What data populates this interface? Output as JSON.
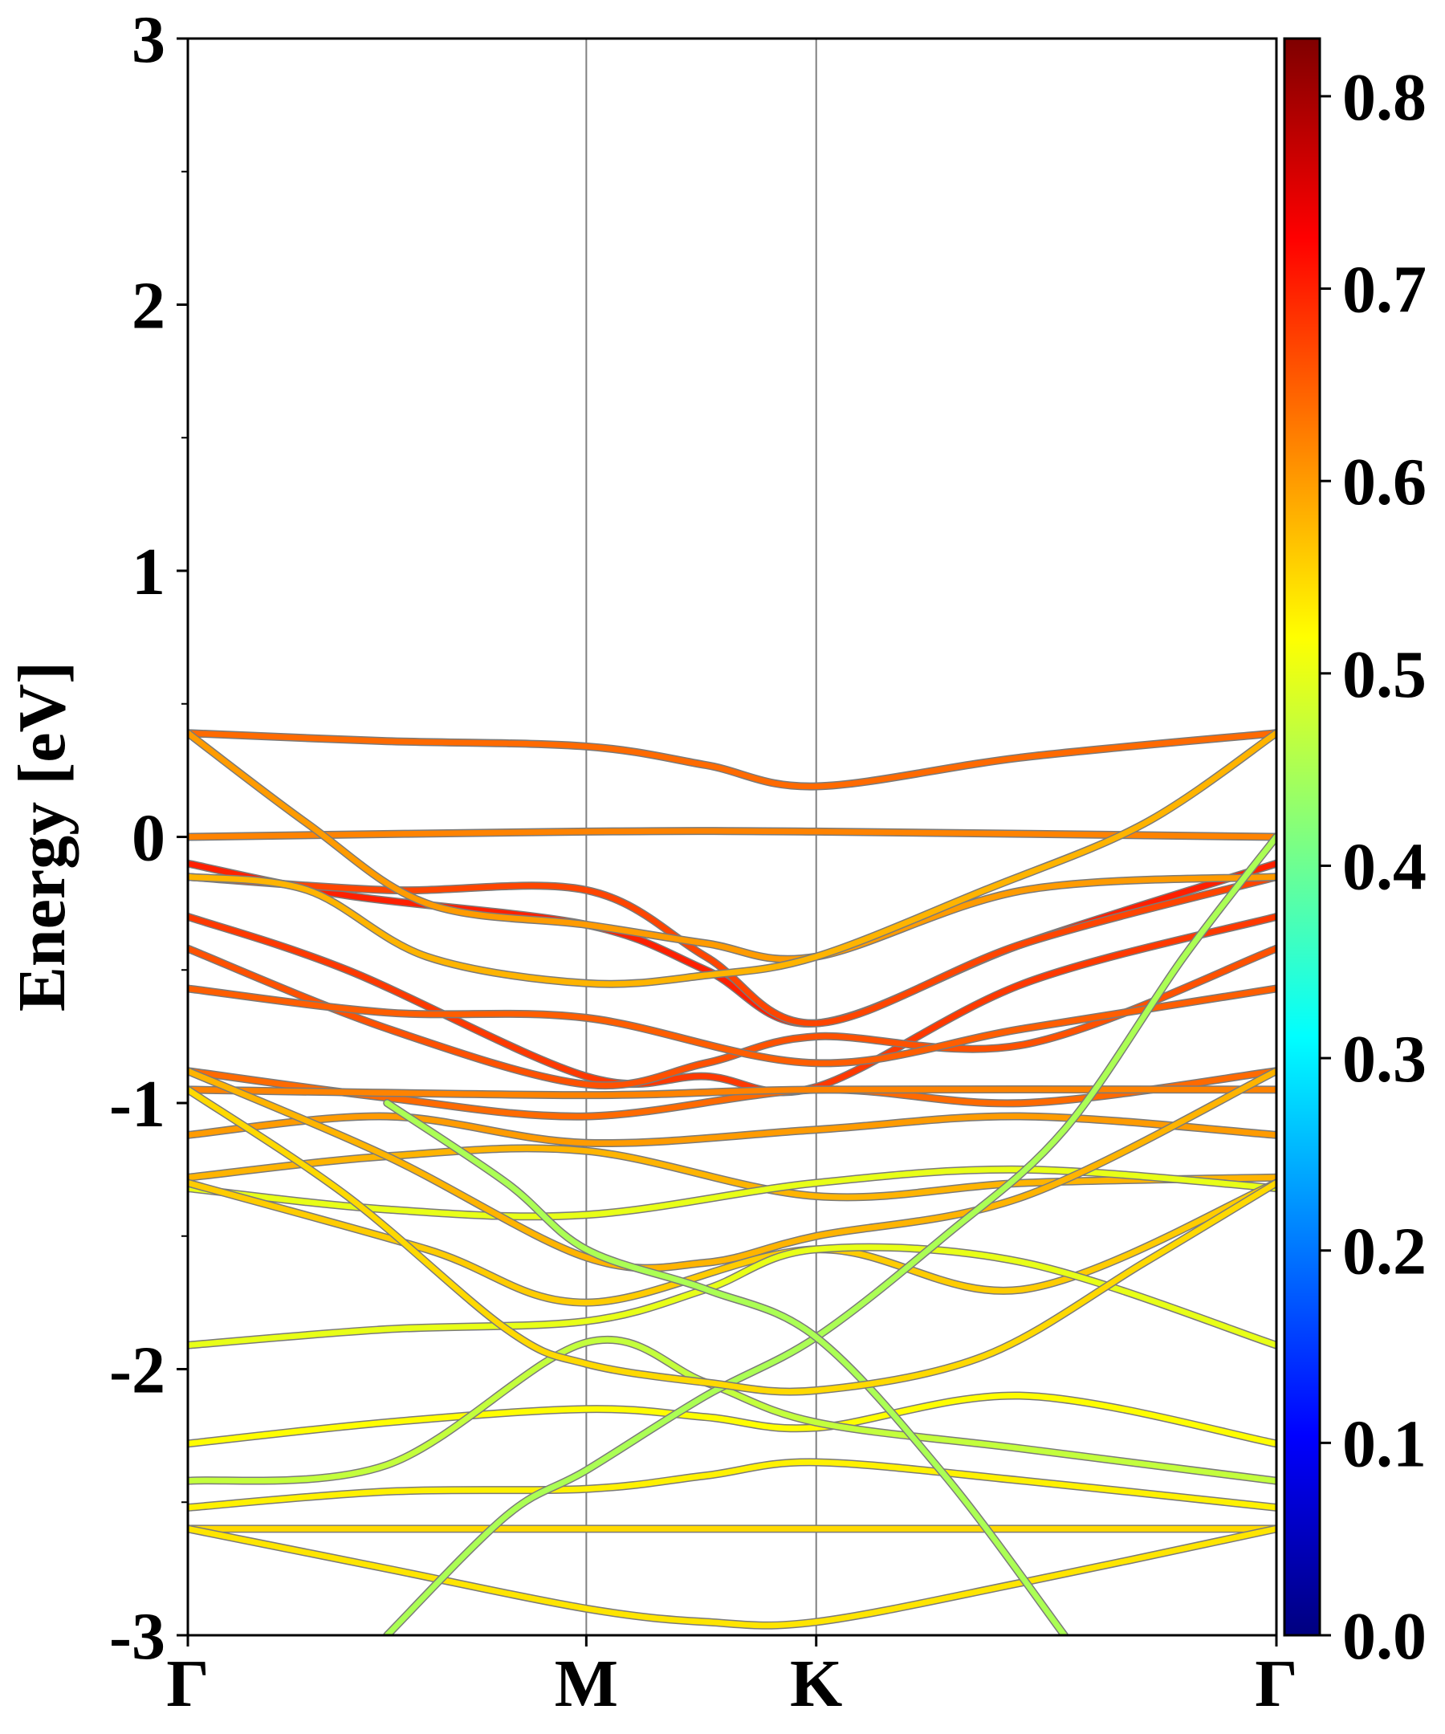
{
  "chart_data": {
    "type": "line",
    "title": "",
    "xlabel": "",
    "ylabel": "Energy [eV]",
    "ylim": [
      -3,
      3
    ],
    "y_ticks": [
      -3,
      -2,
      -1,
      0,
      1,
      2,
      3
    ],
    "y_tick_labels": [
      "-3",
      "-2",
      "-1",
      "0",
      "1",
      "2",
      "3"
    ],
    "k_points": [
      {
        "label": "Γ",
        "x": 0.0
      },
      {
        "label": "M",
        "x": 1.0
      },
      {
        "label": "K",
        "x": 1.577
      },
      {
        "label": "Γ",
        "x": 2.732
      }
    ],
    "colorbar": {
      "colormap": "jet",
      "range": [
        0.0,
        0.83
      ],
      "ticks": [
        0.0,
        0.1,
        0.2,
        0.3,
        0.4,
        0.5,
        0.6,
        0.7,
        0.8
      ],
      "tick_labels": [
        "0.0",
        "0.1",
        "0.2",
        "0.3",
        "0.4",
        "0.5",
        "0.6",
        "0.7",
        "0.8"
      ]
    },
    "series": [
      {
        "x": [
          0,
          0.5,
          1.0,
          1.3,
          1.577,
          2.1,
          2.732
        ],
        "y": [
          0.39,
          0.36,
          0.34,
          0.27,
          0.19,
          0.3,
          0.39
        ],
        "weight": 0.64
      },
      {
        "x": [
          0,
          1.0,
          1.577,
          2.732
        ],
        "y": [
          0.0,
          0.02,
          0.02,
          0.0
        ],
        "weight": 0.62
      },
      {
        "x": [
          0,
          0.4,
          1.0,
          1.3,
          1.577,
          2.1,
          2.732
        ],
        "y": [
          -0.1,
          -0.22,
          -0.33,
          -0.5,
          -0.7,
          -0.4,
          -0.1
        ],
        "weight": 0.7
      },
      {
        "x": [
          0,
          0.5,
          1.0,
          1.3,
          1.577,
          2.1,
          2.732
        ],
        "y": [
          -0.15,
          -0.2,
          -0.2,
          -0.45,
          -0.7,
          -0.4,
          -0.15
        ],
        "weight": 0.67
      },
      {
        "x": [
          0,
          0.4,
          1.0,
          1.3,
          1.577,
          2.1,
          2.732
        ],
        "y": [
          -0.3,
          -0.5,
          -0.9,
          -0.9,
          -0.94,
          -0.55,
          -0.3
        ],
        "weight": 0.68
      },
      {
        "x": [
          0,
          0.5,
          1.0,
          1.3,
          1.577,
          2.1,
          2.732
        ],
        "y": [
          -0.42,
          -0.72,
          -0.93,
          -0.85,
          -0.75,
          -0.78,
          -0.42
        ],
        "weight": 0.66
      },
      {
        "x": [
          0,
          0.5,
          1.0,
          1.577,
          2.1,
          2.732
        ],
        "y": [
          -0.57,
          -0.66,
          -0.68,
          -0.85,
          -0.72,
          -0.57
        ],
        "weight": 0.65
      },
      {
        "x": [
          0,
          0.3,
          0.6,
          1.0,
          1.3,
          1.577,
          2.1,
          2.732
        ],
        "y": [
          0.39,
          0.05,
          -0.25,
          -0.33,
          -0.4,
          -0.45,
          -0.2,
          -0.15
        ],
        "weight": 0.6
      },
      {
        "x": [
          0,
          0.3,
          0.6,
          1.0,
          1.3,
          1.577,
          2.0,
          2.4,
          2.732
        ],
        "y": [
          -0.15,
          -0.2,
          -0.45,
          -0.55,
          -0.52,
          -0.45,
          -0.2,
          0.05,
          0.39
        ],
        "weight": 0.58
      },
      {
        "x": [
          0,
          0.5,
          1.0,
          1.577,
          2.1,
          2.732
        ],
        "y": [
          -0.88,
          -0.98,
          -1.05,
          -0.95,
          -1.0,
          -0.88
        ],
        "weight": 0.64
      },
      {
        "x": [
          0,
          1.0,
          1.577,
          2.732
        ],
        "y": [
          -0.95,
          -0.97,
          -0.95,
          -0.95
        ],
        "weight": 0.62
      },
      {
        "x": [
          0,
          0.5,
          1.0,
          1.577,
          2.1,
          2.732
        ],
        "y": [
          -1.12,
          -1.05,
          -1.15,
          -1.1,
          -1.05,
          -1.12
        ],
        "weight": 0.6
      },
      {
        "x": [
          0,
          0.5,
          1.0,
          1.577,
          2.1,
          2.732
        ],
        "y": [
          -1.28,
          -1.2,
          -1.18,
          -1.35,
          -1.3,
          -1.28
        ],
        "weight": 0.58
      },
      {
        "x": [
          0,
          0.5,
          1.0,
          1.577,
          2.1,
          2.732
        ],
        "y": [
          -1.32,
          -1.4,
          -1.42,
          -1.3,
          -1.25,
          -1.32
        ],
        "weight": 0.5
      },
      {
        "x": [
          0,
          0.5,
          1.0,
          1.3,
          1.577,
          2.1,
          2.732
        ],
        "y": [
          -0.88,
          -1.2,
          -1.58,
          -1.6,
          -1.5,
          -1.35,
          -0.88
        ],
        "weight": 0.58
      },
      {
        "x": [
          0,
          0.6,
          1.0,
          1.577,
          2.1,
          2.732
        ],
        "y": [
          -1.3,
          -1.55,
          -1.75,
          -1.55,
          -1.7,
          -1.3
        ],
        "weight": 0.56
      },
      {
        "x": [
          0,
          0.5,
          1.0,
          1.3,
          1.577,
          2.1,
          2.732
        ],
        "y": [
          -1.91,
          -1.85,
          -1.82,
          -1.7,
          -1.55,
          -1.6,
          -1.91
        ],
        "weight": 0.5
      },
      {
        "x": [
          0,
          0.5,
          1.0,
          1.3,
          1.577,
          2.1,
          2.732
        ],
        "y": [
          -2.28,
          -2.2,
          -2.15,
          -2.18,
          -2.22,
          -2.1,
          -2.28
        ],
        "weight": 0.52
      },
      {
        "x": [
          0,
          0.5,
          1.0,
          1.3,
          1.577,
          2.1,
          2.732
        ],
        "y": [
          -2.42,
          -2.36,
          -1.9,
          -2.05,
          -2.2,
          -2.3,
          -2.42
        ],
        "weight": 0.47
      },
      {
        "x": [
          0,
          0.5,
          1.0,
          1.3,
          1.577,
          2.1,
          2.732
        ],
        "y": [
          -2.52,
          -2.46,
          -2.45,
          -2.4,
          -2.35,
          -2.42,
          -2.52
        ],
        "weight": 0.53
      },
      {
        "x": [
          0,
          1.0,
          1.577,
          2.732
        ],
        "y": [
          -2.6,
          -2.6,
          -2.6,
          -2.6
        ],
        "weight": 0.55
      },
      {
        "x": [
          0,
          0.5,
          1.0,
          1.3,
          1.577,
          2.1,
          2.732
        ],
        "y": [
          -2.6,
          -2.75,
          -2.9,
          -2.95,
          -2.95,
          -2.8,
          -2.6
        ],
        "weight": 0.54
      },
      {
        "x": [
          0.5,
          0.8,
          1.0,
          1.3,
          1.577,
          1.9,
          2.2,
          2.5,
          2.732
        ],
        "y": [
          -3.0,
          -2.55,
          -2.38,
          -2.1,
          -1.88,
          -1.5,
          -1.1,
          -0.45,
          0.0
        ],
        "weight": 0.45
      },
      {
        "x": [
          0.5,
          0.8,
          1.0,
          1.3,
          1.577,
          1.9,
          2.2
        ],
        "y": [
          -1.0,
          -1.3,
          -1.55,
          -1.7,
          -1.88,
          -2.4,
          -3.0
        ],
        "weight": 0.45
      },
      {
        "x": [
          0,
          0.4,
          0.8,
          1.0,
          1.3,
          1.577,
          2.0,
          2.4,
          2.732
        ],
        "y": [
          -0.95,
          -1.35,
          -1.85,
          -1.98,
          -2.05,
          -2.08,
          -1.95,
          -1.6,
          -1.3
        ],
        "weight": 0.55
      }
    ]
  }
}
